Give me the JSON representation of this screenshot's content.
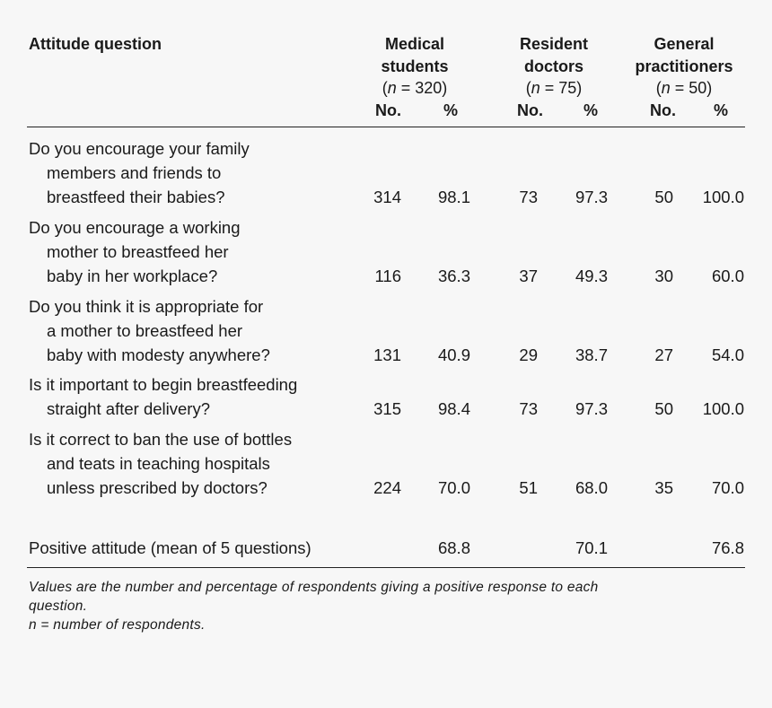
{
  "header": {
    "question_label": "Attitude question",
    "groups": [
      {
        "line1": "Medical",
        "line2": "students",
        "n_label": "n",
        "n_value": "= 320"
      },
      {
        "line1": "Resident",
        "line2": "doctors",
        "n_label": "n",
        "n_value": "= 75"
      },
      {
        "line1": "General",
        "line2": "practitioners",
        "n_label": "n",
        "n_value": "= 50"
      }
    ],
    "no_label": "No.",
    "pct_label": "%"
  },
  "rows": [
    {
      "lines": [
        "Do you encourage your family",
        "members and friends to",
        "breastfeed their babies?"
      ],
      "values": [
        "314",
        "98.1",
        "73",
        "97.3",
        "50",
        "100.0"
      ]
    },
    {
      "lines": [
        "Do you encourage a working",
        "mother to breastfeed her",
        "baby in her workplace?"
      ],
      "values": [
        "116",
        "36.3",
        "37",
        "49.3",
        "30",
        "60.0"
      ]
    },
    {
      "lines": [
        "Do you think it is appropriate for",
        "a mother to breastfeed her",
        "baby with modesty anywhere?"
      ],
      "values": [
        "131",
        "40.9",
        "29",
        "38.7",
        "27",
        "54.0"
      ]
    },
    {
      "lines": [
        "Is it important to begin breastfeeding",
        "straight after delivery?"
      ],
      "values": [
        "315",
        "98.4",
        "73",
        "97.3",
        "50",
        "100.0"
      ]
    },
    {
      "lines": [
        "Is it correct to ban the use of bottles",
        "and teats in teaching hospitals",
        "unless prescribed by doctors?"
      ],
      "values": [
        "224",
        "70.0",
        "51",
        "68.0",
        "35",
        "70.0"
      ]
    }
  ],
  "summary": {
    "label": "Positive attitude (mean of 5 questions)",
    "values": [
      "68.8",
      "70.1",
      "76.8"
    ]
  },
  "footnotes": {
    "line1": "Values are the number and percentage of respondents giving a positive response to each",
    "line2": "question.",
    "line3": "n = number of respondents."
  }
}
